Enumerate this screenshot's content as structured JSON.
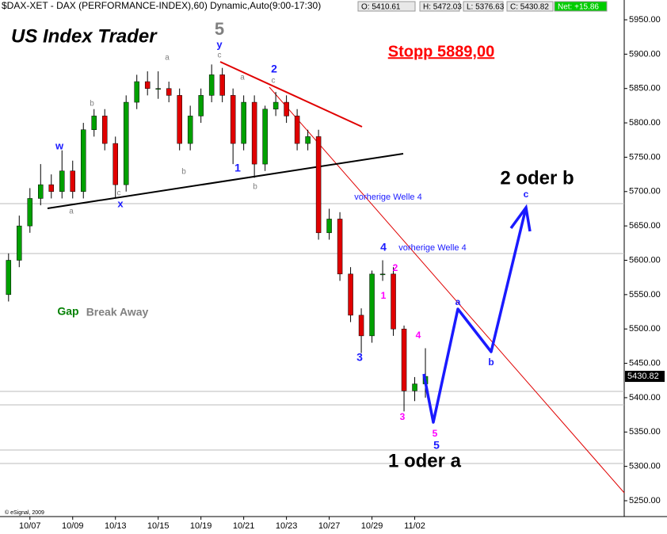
{
  "chart_data": {
    "type": "candlestick",
    "header": "$DAX-XET - DAX (PERFORMANCE-INDEX),60) Dynamic,Auto(9:00-17:30)",
    "quote": [
      "O: 5410.61",
      "H: 5472.03",
      "L: 5376.63",
      "C: 5430.82",
      "Net: +15.86"
    ],
    "last_price_label": "5430.82",
    "copyright": "© eSignal, 2009",
    "up_color": "#00a000",
    "down_color": "#e00000",
    "xlim": [
      -1.4,
      27.8
    ],
    "xticks": [
      {
        "value": 0,
        "label": "10/07"
      },
      {
        "value": 2,
        "label": "10/09"
      },
      {
        "value": 4,
        "label": "10/13"
      },
      {
        "value": 6,
        "label": "10/15"
      },
      {
        "value": 8,
        "label": "10/19"
      },
      {
        "value": 10,
        "label": "10/21"
      },
      {
        "value": 12,
        "label": "10/23"
      },
      {
        "value": 14,
        "label": "10/27"
      },
      {
        "value": 16,
        "label": "10/29"
      },
      {
        "value": 18,
        "label": "11/02"
      }
    ],
    "ylim": [
      5250,
      5950
    ],
    "yticks": [
      {
        "value": 5250,
        "label": "5250.00"
      },
      {
        "value": 5300,
        "label": "5300.00"
      },
      {
        "value": 5350,
        "label": "5350.00"
      },
      {
        "value": 5400,
        "label": "5400.00"
      },
      {
        "value": 5450,
        "label": "5450.00"
      },
      {
        "value": 5500,
        "label": "5500.00"
      },
      {
        "value": 5550,
        "label": "5550.00"
      },
      {
        "value": 5600,
        "label": "5600.00"
      },
      {
        "value": 5650,
        "label": "5650.00"
      },
      {
        "value": 5700,
        "label": "5700.00"
      },
      {
        "value": 5750,
        "label": "5750.00"
      },
      {
        "value": 5800,
        "label": "5800.00"
      },
      {
        "value": 5850,
        "label": "5850.00"
      },
      {
        "value": 5900,
        "label": "5900.00"
      },
      {
        "value": 5950,
        "label": "5950.00"
      }
    ],
    "x": [
      -1,
      -0.5,
      0,
      0.5,
      1,
      1.5,
      2,
      2.5,
      3,
      3.5,
      4,
      4.5,
      5,
      5.5,
      6,
      6.5,
      7,
      7.5,
      8,
      8.5,
      9,
      9.5,
      10,
      10.5,
      11,
      11.5,
      12,
      12.5,
      13,
      13.5,
      14,
      14.5,
      15,
      15.5,
      16,
      16.5,
      17,
      17.5,
      18,
      18.5
    ],
    "open": [
      5550,
      5600,
      5650,
      5690,
      5710,
      5700,
      5730,
      5700,
      5790,
      5810,
      5770,
      5710,
      5830,
      5860,
      5850,
      5850,
      5840,
      5770,
      5810,
      5840,
      5870,
      5840,
      5770,
      5830,
      5740,
      5820,
      5830,
      5810,
      5770,
      5780,
      5640,
      5660,
      5580,
      5520,
      5490,
      5580,
      5580,
      5500,
      5410,
      5420
    ],
    "high": [
      5610,
      5665,
      5705,
      5740,
      5725,
      5760,
      5745,
      5800,
      5820,
      5820,
      5780,
      5840,
      5870,
      5875,
      5875,
      5860,
      5850,
      5825,
      5850,
      5885,
      5880,
      5850,
      5840,
      5840,
      5825,
      5845,
      5840,
      5820,
      5790,
      5790,
      5675,
      5670,
      5590,
      5530,
      5585,
      5600,
      5590,
      5505,
      5430,
      5472
    ],
    "low": [
      5540,
      5590,
      5640,
      5680,
      5690,
      5690,
      5690,
      5690,
      5780,
      5760,
      5690,
      5700,
      5820,
      5840,
      5835,
      5830,
      5760,
      5760,
      5800,
      5830,
      5830,
      5740,
      5760,
      5720,
      5730,
      5810,
      5800,
      5760,
      5760,
      5630,
      5630,
      5570,
      5510,
      5465,
      5480,
      5570,
      5490,
      5380,
      5395,
      5400
    ],
    "close": [
      5600,
      5650,
      5690,
      5710,
      5700,
      5730,
      5700,
      5790,
      5810,
      5770,
      5710,
      5830,
      5860,
      5850,
      5850,
      5840,
      5770,
      5810,
      5840,
      5870,
      5840,
      5770,
      5830,
      5740,
      5820,
      5830,
      5810,
      5770,
      5780,
      5640,
      5660,
      5580,
      5520,
      5490,
      5580,
      5580,
      5500,
      5410,
      5420,
      5431
    ],
    "annotations": [
      {
        "text": "US Index Trader",
        "color": "#000000"
      },
      {
        "text": "5",
        "color": "#808080"
      },
      {
        "text": "y",
        "color": "#1a1aff"
      },
      {
        "text": "c",
        "color": "#808080"
      },
      {
        "text": "a",
        "color": "#808080"
      },
      {
        "text": "b",
        "color": "#808080"
      },
      {
        "text": "w",
        "color": "#1a1aff"
      },
      {
        "text": "c",
        "color": "#808080"
      },
      {
        "text": "x",
        "color": "#1a1aff"
      },
      {
        "text": "a",
        "color": "#808080"
      },
      {
        "text": "b",
        "color": "#808080"
      },
      {
        "text": "1",
        "color": "#1a1aff"
      },
      {
        "text": "b",
        "color": "#808080"
      },
      {
        "text": "a",
        "color": "#808080"
      },
      {
        "text": "2",
        "color": "#1a1aff"
      },
      {
        "text": "c",
        "color": "#808080"
      },
      {
        "text": "Stopp 5889,00",
        "color": "#ff0000"
      },
      {
        "text": "vorherige  Welle 4",
        "color": "#1a1aff"
      },
      {
        "text": "4",
        "color": "#1a1aff"
      },
      {
        "text": "vorherige  Welle 4",
        "color": "#1a1aff"
      },
      {
        "text": "2",
        "color": "#ff00ff"
      },
      {
        "text": "1",
        "color": "#ff00ff"
      },
      {
        "text": "3",
        "color": "#1a1aff"
      },
      {
        "text": "4",
        "color": "#ff00ff"
      },
      {
        "text": "3",
        "color": "#ff00ff"
      },
      {
        "text": "5",
        "color": "#ff00ff"
      },
      {
        "text": "5",
        "color": "#1a1aff"
      },
      {
        "text": "1 oder a",
        "color": "#000000"
      },
      {
        "text": "2 oder b",
        "color": "#000000"
      },
      {
        "text": "c",
        "color": "#1a1aff"
      },
      {
        "text": "a",
        "color": "#1a1aff"
      },
      {
        "text": "b",
        "color": "#1a1aff"
      },
      {
        "text": "Gap",
        "color": "#008000"
      },
      {
        "text": "Break Away",
        "color": "#808080"
      }
    ]
  }
}
